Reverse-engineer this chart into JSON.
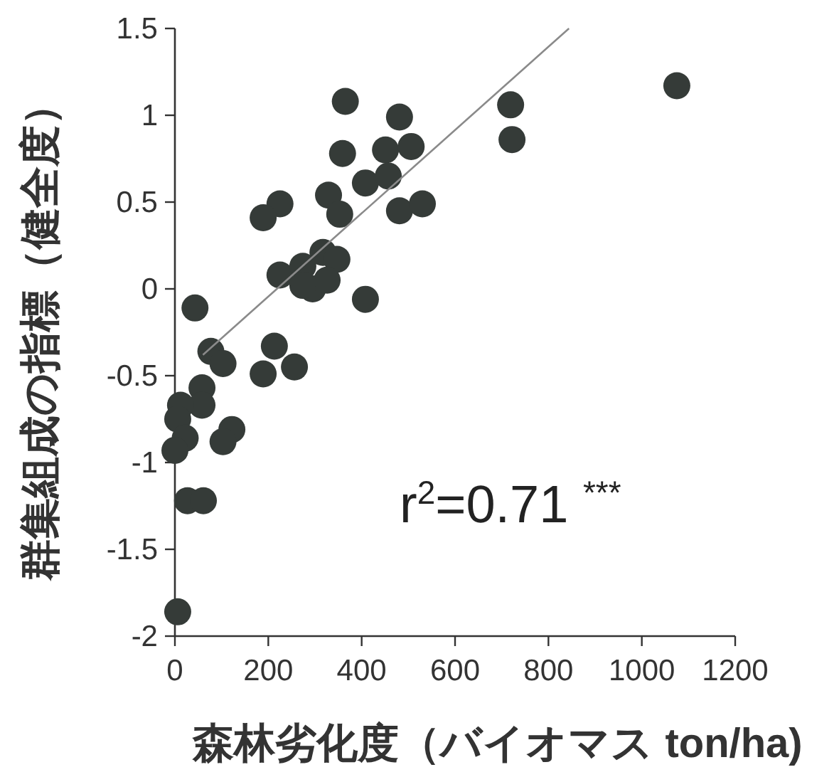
{
  "chart_data": {
    "type": "scatter",
    "xlabel": "森林劣化度（バイオマス ton/ha)",
    "ylabel": "群集組成の指標（健全度）",
    "xlim": [
      0,
      1200
    ],
    "xticks": [
      0,
      200,
      400,
      600,
      800,
      1000,
      1200
    ],
    "ylim": [
      -2,
      1.5
    ],
    "yticks": [
      -2,
      -1.5,
      -1,
      -0.5,
      0,
      0.5,
      1,
      1.5
    ],
    "grid": false,
    "annotations": [
      "r$^{2}$=0.71 $^{***}$"
    ],
    "series": [
      {
        "marker": "circle",
        "color": "#353b38",
        "x": [
          1075,
          719,
          722,
          365,
          481,
          359,
          451,
          506,
          408,
          457,
          481,
          530,
          225,
          189,
          329,
          353,
          225,
          274,
          317,
          347,
          295,
          274,
          326,
          408,
          43,
          77,
          103,
          213,
          189,
          256,
          58,
          58,
          12,
          6,
          22,
          0,
          122,
          103,
          27,
          61,
          6
        ],
        "values": [
          1.17,
          1.06,
          0.86,
          1.08,
          0.99,
          0.78,
          0.8,
          0.82,
          0.61,
          0.65,
          0.45,
          0.49,
          0.49,
          0.41,
          0.54,
          0.43,
          0.08,
          0.13,
          0.21,
          0.17,
          0.0,
          0.02,
          0.05,
          -0.06,
          -0.11,
          -0.36,
          -0.43,
          -0.33,
          -0.49,
          -0.45,
          -0.57,
          -0.67,
          -0.67,
          -0.75,
          -0.86,
          -0.93,
          -0.81,
          -0.88,
          -1.22,
          -1.22,
          -1.86
        ]
      },
      {
        "type": "line",
        "color": "#8a8a8a",
        "x": [
          60,
          844
        ],
        "values": [
          -0.38,
          1.5
        ]
      }
    ]
  }
}
